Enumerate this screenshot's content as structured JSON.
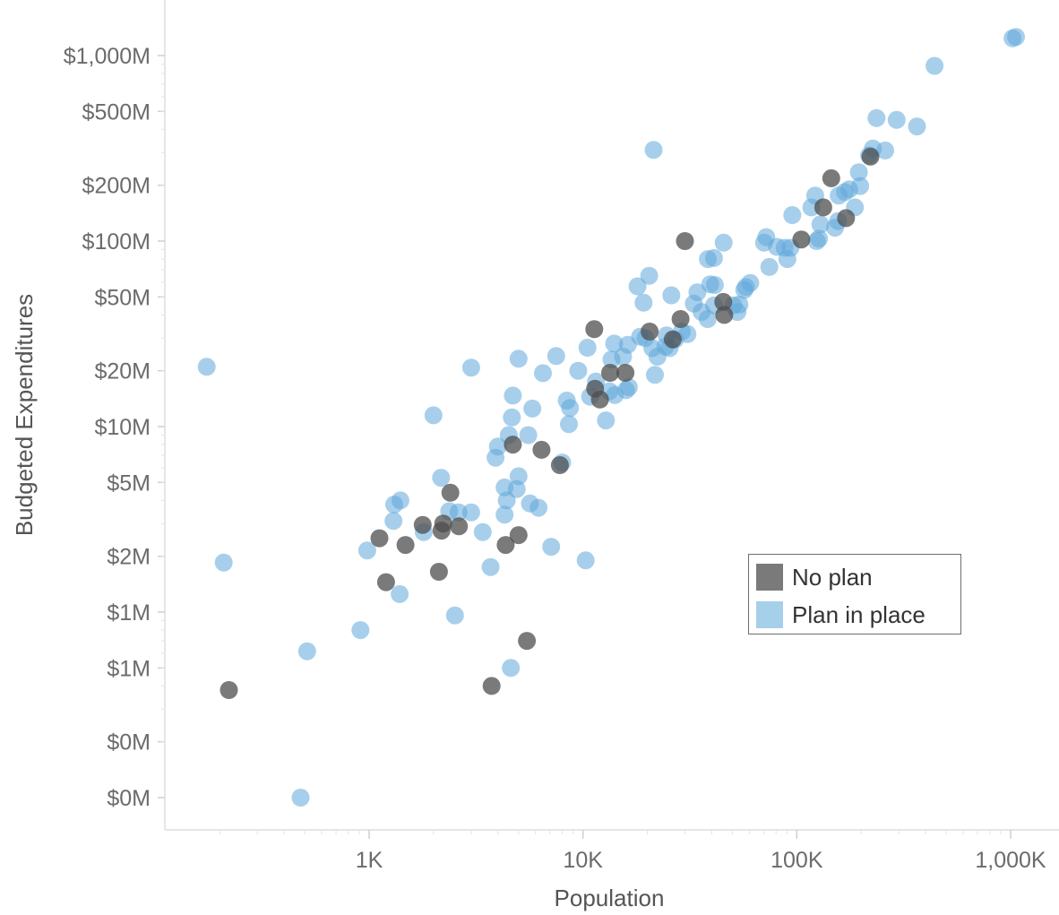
{
  "chart_data": {
    "type": "scatter",
    "title": "",
    "xlabel": "Population",
    "ylabel": "Budgeted Expenditures",
    "x_scale": "log",
    "y_scale": "log",
    "xlim": [
      110,
      1200000
    ],
    "ylim": [
      80000,
      1700000000
    ],
    "x_ticks": [
      {
        "value": 1000,
        "label": "1K"
      },
      {
        "value": 10000,
        "label": "10K"
      },
      {
        "value": 100000,
        "label": "100K"
      },
      {
        "value": 1000000,
        "label": "1,000K"
      }
    ],
    "y_ticks": [
      {
        "value": 1000000000,
        "label": "$1,000M"
      },
      {
        "value": 500000000,
        "label": "$500M"
      },
      {
        "value": 200000000,
        "label": "$200M"
      },
      {
        "value": 100000000,
        "label": "$100M"
      },
      {
        "value": 50000000,
        "label": "$50M"
      },
      {
        "value": 20000000,
        "label": "$20M"
      },
      {
        "value": 10000000,
        "label": "$10M"
      },
      {
        "value": 5000000,
        "label": "$5M"
      },
      {
        "value": 2000000,
        "label": "$2M"
      },
      {
        "value": 1000000,
        "label": "$1M"
      },
      {
        "value": 500000,
        "label": "$1M"
      },
      {
        "value": 200000,
        "label": "$0M"
      },
      {
        "value": 100000,
        "label": "$0M"
      }
    ],
    "grid": false,
    "legend_position": "bottom-right",
    "series": [
      {
        "name": "No plan",
        "color": "#4d4d4d",
        "opacity": 0.75,
        "points": [
          [
            221,
            380000
          ],
          [
            1117,
            2500000
          ],
          [
            1200,
            1450000
          ],
          [
            1480,
            2300000
          ],
          [
            1780,
            2950000
          ],
          [
            2120,
            1650000
          ],
          [
            2180,
            2750000
          ],
          [
            2220,
            3000000
          ],
          [
            2400,
            4400000
          ],
          [
            2630,
            2900000
          ],
          [
            3740,
            400000
          ],
          [
            4350,
            2300000
          ],
          [
            4700,
            8000000
          ],
          [
            5000,
            2600000
          ],
          [
            5470,
            700000
          ],
          [
            6400,
            7500000
          ],
          [
            7800,
            6200000
          ],
          [
            11300,
            33500000
          ],
          [
            11400,
            16000000
          ],
          [
            12000,
            14000000
          ],
          [
            13400,
            19500000
          ],
          [
            15800,
            19500000
          ],
          [
            20500,
            32500000
          ],
          [
            26300,
            29500000
          ],
          [
            28600,
            38000000
          ],
          [
            30000,
            100000000
          ],
          [
            45300,
            47000000
          ],
          [
            45800,
            40000000
          ],
          [
            105000,
            102000000
          ],
          [
            133000,
            152000000
          ],
          [
            145000,
            218000000
          ],
          [
            170000,
            133000000
          ],
          [
            221000,
            285000000
          ]
        ]
      },
      {
        "name": "Plan in place",
        "color": "#5ea8db",
        "opacity": 0.55,
        "points": [
          [
            174,
            21000000
          ],
          [
            209,
            1850000
          ],
          [
            478,
            100000
          ],
          [
            513,
            615000
          ],
          [
            911,
            800000
          ],
          [
            980,
            2150000
          ],
          [
            1300,
            3100000
          ],
          [
            1310,
            3800000
          ],
          [
            1390,
            1250000
          ],
          [
            1400,
            4000000
          ],
          [
            1800,
            2700000
          ],
          [
            2000,
            11500000
          ],
          [
            2170,
            5300000
          ],
          [
            2370,
            3500000
          ],
          [
            2520,
            960000
          ],
          [
            2620,
            3450000
          ],
          [
            3000,
            3450000
          ],
          [
            3000,
            20800000
          ],
          [
            3400,
            2700000
          ],
          [
            3700,
            1750000
          ],
          [
            3900,
            6800000
          ],
          [
            4000,
            7800000
          ],
          [
            4300,
            4700000
          ],
          [
            4300,
            3350000
          ],
          [
            4400,
            4000000
          ],
          [
            4500,
            9000000
          ],
          [
            4600,
            500000
          ],
          [
            4650,
            11200000
          ],
          [
            4700,
            14700000
          ],
          [
            4900,
            4600000
          ],
          [
            5000,
            5400000
          ],
          [
            5000,
            23200000
          ],
          [
            5550,
            9000000
          ],
          [
            5650,
            3850000
          ],
          [
            5800,
            12500000
          ],
          [
            6200,
            3650000
          ],
          [
            6500,
            19400000
          ],
          [
            7100,
            2250000
          ],
          [
            7500,
            24000000
          ],
          [
            8000,
            6400000
          ],
          [
            8400,
            13800000
          ],
          [
            8600,
            10300000
          ],
          [
            8700,
            12600000
          ],
          [
            9500,
            20000000
          ],
          [
            10300,
            1900000
          ],
          [
            10500,
            26600000
          ],
          [
            10800,
            14500000
          ],
          [
            11500,
            17500000
          ],
          [
            12800,
            10800000
          ],
          [
            13300,
            15500000
          ],
          [
            13600,
            23000000
          ],
          [
            14000,
            28000000
          ],
          [
            14100,
            14800000
          ],
          [
            15400,
            23800000
          ],
          [
            15900,
            15700000
          ],
          [
            16200,
            27600000
          ],
          [
            16400,
            16300000
          ],
          [
            18000,
            57000000
          ],
          [
            18500,
            30500000
          ],
          [
            19200,
            46500000
          ],
          [
            19600,
            30000000
          ],
          [
            20400,
            65000000
          ],
          [
            21100,
            26500000
          ],
          [
            21400,
            310000000
          ],
          [
            21700,
            19000000
          ],
          [
            22300,
            23800000
          ],
          [
            24300,
            27000000
          ],
          [
            24600,
            31000000
          ],
          [
            25400,
            26500000
          ],
          [
            25900,
            51000000
          ],
          [
            27000,
            29500000
          ],
          [
            29000,
            32500000
          ],
          [
            30800,
            31500000
          ],
          [
            33000,
            46000000
          ],
          [
            34300,
            53000000
          ],
          [
            35900,
            41500000
          ],
          [
            38300,
            38000000
          ],
          [
            38400,
            80000000
          ],
          [
            39400,
            58500000
          ],
          [
            41000,
            81000000
          ],
          [
            41000,
            45000000
          ],
          [
            41400,
            58000000
          ],
          [
            45500,
            98000000
          ],
          [
            50500,
            45000000
          ],
          [
            52800,
            41500000
          ],
          [
            53900,
            45500000
          ],
          [
            56800,
            54500000
          ],
          [
            57800,
            56500000
          ],
          [
            60600,
            59500000
          ],
          [
            70300,
            98000000
          ],
          [
            72000,
            105000000
          ],
          [
            74400,
            72500000
          ],
          [
            80800,
            93000000
          ],
          [
            87800,
            92000000
          ],
          [
            90300,
            80000000
          ],
          [
            93400,
            92000000
          ],
          [
            95300,
            138000000
          ],
          [
            117000,
            152000000
          ],
          [
            122000,
            176000000
          ],
          [
            124000,
            100000000
          ],
          [
            127000,
            103000000
          ],
          [
            129000,
            123000000
          ],
          [
            151000,
            118000000
          ],
          [
            156000,
            128000000
          ],
          [
            157000,
            176000000
          ],
          [
            168000,
            184000000
          ],
          [
            176000,
            190000000
          ],
          [
            187000,
            152000000
          ],
          [
            195000,
            235000000
          ],
          [
            198000,
            198000000
          ],
          [
            218000,
            290000000
          ],
          [
            227000,
            315000000
          ],
          [
            236000,
            460000000
          ],
          [
            259000,
            308000000
          ],
          [
            293000,
            450000000
          ],
          [
            365000,
            415000000
          ],
          [
            441000,
            880000000
          ],
          [
            1020000,
            1240000000
          ],
          [
            1060000,
            1260000000
          ]
        ]
      }
    ]
  }
}
